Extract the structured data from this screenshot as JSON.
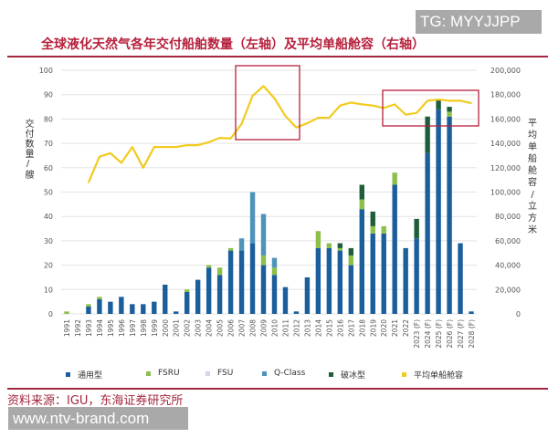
{
  "watermark_top": "TG: MYYJJPP",
  "watermark_bottom": "www.ntv-brand.com",
  "source": "资料来源：IGU，东海证券研究所",
  "chart_data": {
    "type": "bar",
    "title": "全球液化天然气各年交付船舶数量（左轴）及平均单船舱容（右轴）",
    "ylabel": "交付数量/艘",
    "y2label": "平均单船舱容/立方米",
    "ylim": [
      0,
      100
    ],
    "y2lim": [
      0,
      200000
    ],
    "yticks": [
      "0",
      "10",
      "20",
      "30",
      "40",
      "50",
      "60",
      "70",
      "80",
      "90",
      "100"
    ],
    "y2ticks": [
      "0",
      "20,000",
      "40,000",
      "60,000",
      "80,000",
      "100,000",
      "120,000",
      "140,000",
      "160,000",
      "180,000",
      "200,000"
    ],
    "grid": true,
    "stacked": true,
    "legend_position": "bottom",
    "categories": [
      "1991",
      "1992",
      "1993",
      "1994",
      "1995",
      "1996",
      "1997",
      "1998",
      "1999",
      "2000",
      "2001",
      "2002",
      "2003",
      "2004",
      "2005",
      "2006",
      "2007",
      "2008",
      "2009",
      "2010",
      "2011",
      "2012",
      "2013",
      "2014",
      "2015",
      "2016",
      "2017",
      "2018",
      "2019",
      "2020",
      "2021",
      "2022",
      "2023 (F)",
      "2024 (F)",
      "2025 (F)",
      "2026 (F)",
      "2027 (F)",
      "2028 (F)"
    ],
    "series": [
      {
        "name": "通用型",
        "type": "bar",
        "color": "#1b5e9c",
        "values": [
          0,
          0,
          3,
          6,
          5,
          7,
          4,
          4,
          5,
          12,
          1,
          9,
          14,
          19,
          16,
          26,
          26,
          29,
          20,
          16,
          11,
          1,
          15,
          27,
          27,
          26,
          20,
          43,
          33,
          33,
          53,
          27,
          31,
          66,
          84,
          81,
          29,
          1
        ]
      },
      {
        "name": "FSRU",
        "type": "bar",
        "color": "#8dbf4b",
        "values": [
          1,
          0,
          1,
          1,
          0,
          0,
          0,
          0,
          0,
          0,
          0,
          1,
          0,
          1,
          3,
          1,
          0,
          0,
          4,
          3,
          0,
          0,
          0,
          7,
          2,
          1,
          4,
          4,
          3,
          3,
          5,
          0,
          0,
          0,
          0,
          2,
          0,
          0
        ]
      },
      {
        "name": "FSU",
        "type": "bar",
        "color": "#d3d6e8",
        "values": [
          0,
          0,
          0,
          0,
          0,
          0,
          0,
          0,
          0,
          0,
          0,
          0,
          0,
          0,
          0,
          0,
          0,
          0,
          0,
          0,
          0,
          0,
          0,
          0,
          0,
          0,
          0,
          0,
          0,
          0,
          0,
          0,
          0,
          0,
          0,
          0,
          0,
          0
        ]
      },
      {
        "name": "Q-Class",
        "type": "bar",
        "color": "#4e93b9",
        "values": [
          0,
          0,
          0,
          0,
          0,
          0,
          0,
          0,
          0,
          0,
          0,
          0,
          0,
          0,
          0,
          0,
          5,
          21,
          17,
          4,
          0,
          0,
          0,
          0,
          0,
          0,
          0,
          0,
          0,
          0,
          0,
          0,
          0,
          0,
          0,
          0,
          0,
          0
        ]
      },
      {
        "name": "破冰型",
        "type": "bar",
        "color": "#1f5c3a",
        "values": [
          0,
          0,
          0,
          0,
          0,
          0,
          0,
          0,
          0,
          0,
          0,
          0,
          0,
          0,
          0,
          0,
          0,
          0,
          0,
          0,
          0,
          0,
          0,
          0,
          0,
          2,
          3,
          6,
          6,
          0,
          0,
          0,
          8,
          15,
          4,
          2,
          0,
          0
        ]
      },
      {
        "name": "平均单船舱容",
        "type": "line",
        "axis": "right",
        "color": "#f1cb1e",
        "values": [
          null,
          null,
          108000,
          129000,
          132000,
          124000,
          137000,
          120000,
          137000,
          137000,
          137000,
          138500,
          138500,
          141000,
          144500,
          144000,
          156000,
          179000,
          187000,
          177000,
          162500,
          153000,
          156500,
          161000,
          161000,
          171000,
          173500,
          172000,
          171000,
          169000,
          172000,
          163500,
          165000,
          175000,
          176000,
          175000,
          175000,
          173000
        ]
      }
    ],
    "highlight_boxes": [
      [
        "2007",
        "2012"
      ],
      [
        "2021 ",
        "2028 (F)"
      ]
    ]
  }
}
